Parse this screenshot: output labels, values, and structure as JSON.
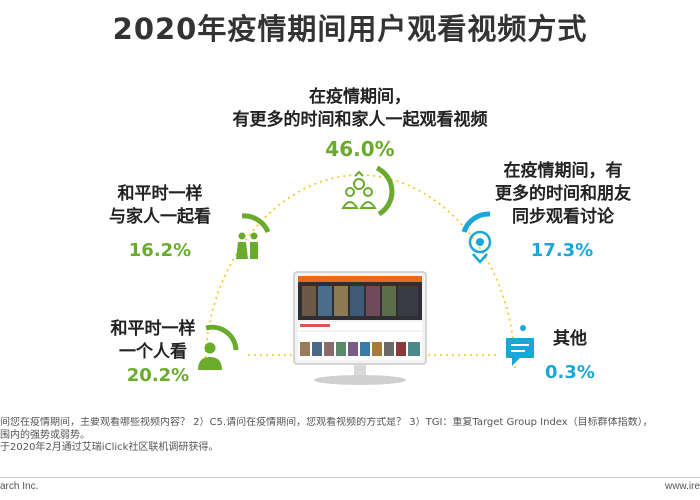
{
  "title": "2020年疫情期间用户观看视频方式",
  "items": {
    "top": {
      "label_line1": "在疫情期间，",
      "label_line2": "有更多的时间和家人一起观看视频",
      "pct": "46.0%"
    },
    "left_top": {
      "label_line1": "和平时一样",
      "label_line2": "与家人一起看",
      "pct": "16.2%"
    },
    "left_bottom": {
      "label_line1": "和平时一样",
      "label_line2": "一个人看",
      "pct": "20.2%"
    },
    "right_top": {
      "label_line1": "在疫情期间，有",
      "label_line2": "更多的时间和朋友",
      "label_line3": "同步观看讨论",
      "pct": "17.3%"
    },
    "right_bottom": {
      "label": "其他",
      "pct": "0.3%"
    }
  },
  "colors": {
    "green": "#6aab2d",
    "blue": "#1aa7d8",
    "dotted": "#f5c518"
  },
  "icons": [
    "family-icon",
    "couple-icon",
    "person-icon",
    "eye-icon",
    "chat-bubble-icon",
    "monitor-icon"
  ],
  "footnote": {
    "line1": "间您在疫情期间，主要观看哪些视频内容？ 2）C5.请问在疫情期间，您观看视频的方式是？ 3）TGI：重复Target Group Index（目标群体指数），",
    "line2": "围内的强势或弱势。",
    "line3": "于2020年2月通过艾瑞iClick社区联机调研获得。"
  },
  "footer": {
    "left": "arch Inc.",
    "right": "www.ire"
  }
}
